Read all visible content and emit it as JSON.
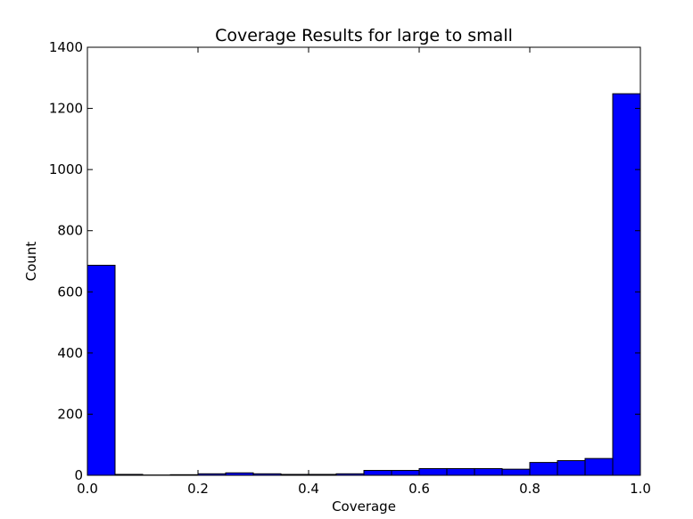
{
  "chart_data": {
    "type": "bar",
    "title": "Coverage Results for large to small",
    "xlabel": "Coverage",
    "ylabel": "Count",
    "xlim": [
      0.0,
      1.0
    ],
    "ylim": [
      0,
      1400
    ],
    "xticks": [
      "0.0",
      "0.2",
      "0.4",
      "0.6",
      "0.8",
      "1.0"
    ],
    "yticks": [
      "0",
      "200",
      "400",
      "600",
      "800",
      "1000",
      "1200",
      "1400"
    ],
    "bin_edges": [
      0.0,
      0.05,
      0.1,
      0.15,
      0.2,
      0.25,
      0.3,
      0.35,
      0.4,
      0.45,
      0.5,
      0.55,
      0.6,
      0.65,
      0.7,
      0.75,
      0.8,
      0.85,
      0.9,
      0.95,
      1.0
    ],
    "values": [
      687,
      3,
      1,
      2,
      5,
      8,
      5,
      3,
      3,
      5,
      16,
      16,
      22,
      22,
      22,
      20,
      42,
      48,
      55,
      1248
    ],
    "bar_color": "#0000ff",
    "edge_color": "#000000",
    "grid": false
  }
}
